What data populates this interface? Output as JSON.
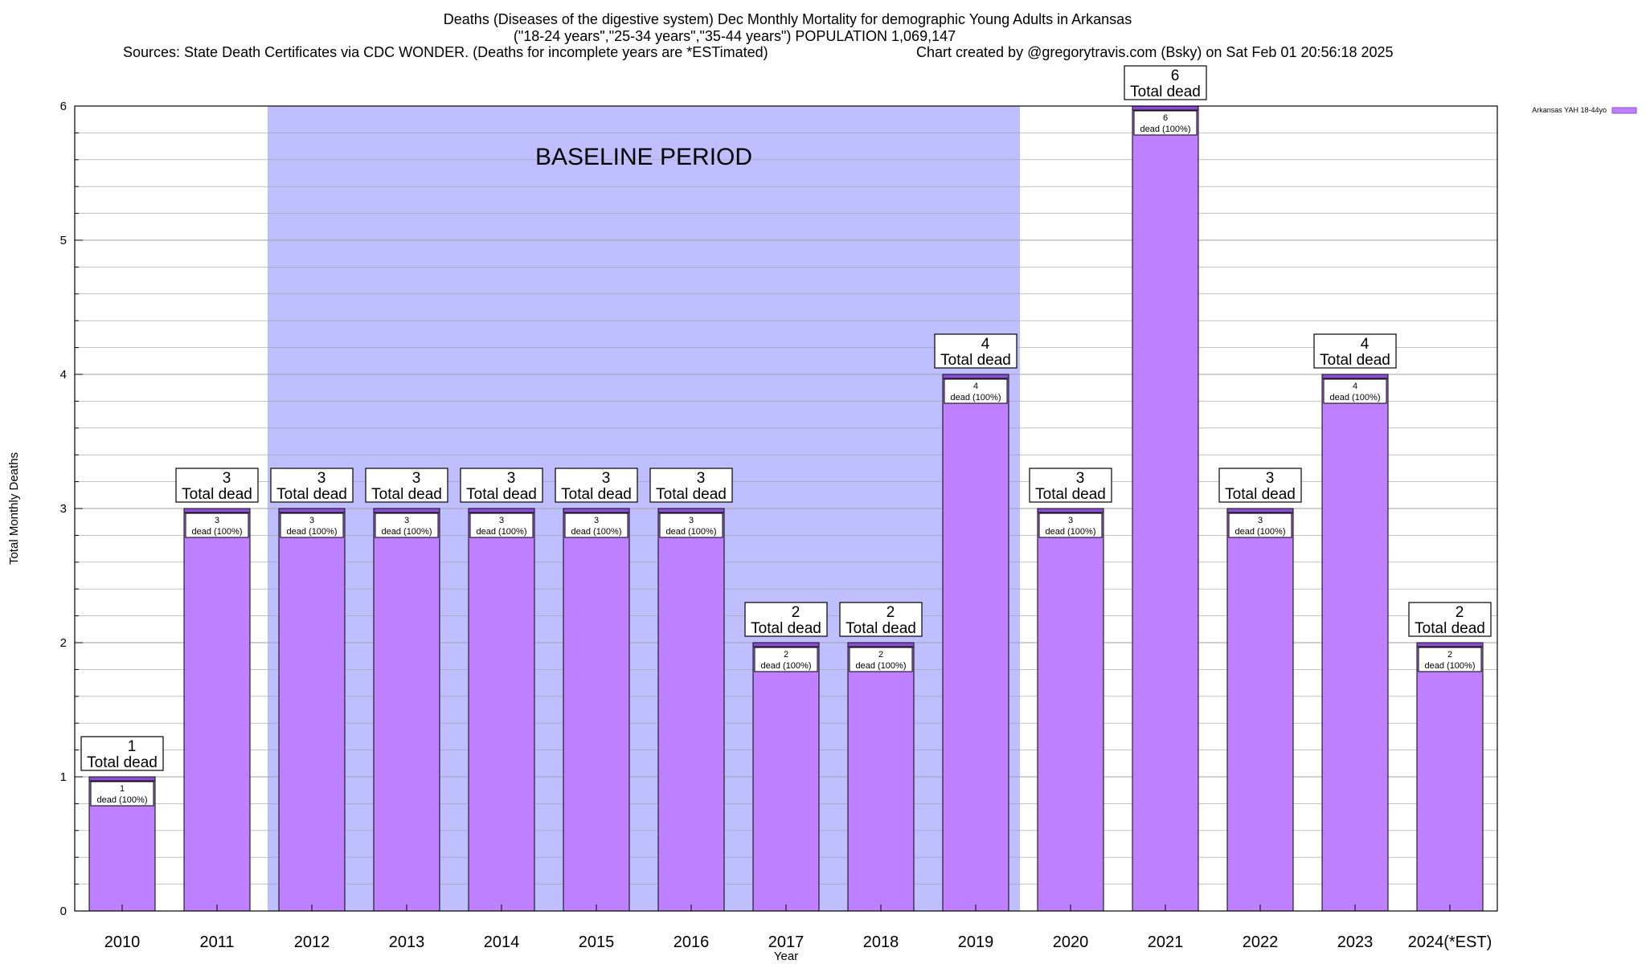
{
  "chart_data": {
    "type": "bar",
    "title": "Deaths (Diseases of the digestive system) Dec Monthly Mortality for demographic Young Adults in Arkansas",
    "subtitle": "(\"18-24 years\",\"25-34 years\",\"35-44 years\") POPULATION 1,069,147",
    "sources": "Sources: State Death Certificates via CDC WONDER. (Deaths for incomplete years are *ESTimated)",
    "credit": "Chart created by @gregorytravis.com (Bsky) on Sat Feb 01 20:56:18 2025",
    "xlabel": "Year",
    "ylabel": "Total Monthly Deaths",
    "ylim": [
      0,
      6
    ],
    "yticks": [
      "0",
      "1",
      "2",
      "3",
      "4",
      "5",
      "6"
    ],
    "grid": true,
    "legend_position": "top-right",
    "series": [
      {
        "name": "Arkansas YAH 18-44yo",
        "values": [
          1,
          3,
          3,
          3,
          3,
          3,
          3,
          2,
          2,
          4,
          3,
          6,
          3,
          4,
          2
        ]
      }
    ],
    "categories": [
      "2010",
      "2011",
      "2012",
      "2013",
      "2014",
      "2015",
      "2016",
      "2017",
      "2018",
      "2019",
      "2020",
      "2021",
      "2022",
      "2023",
      "2024(*EST)"
    ],
    "bar_top_labels": [
      "1",
      "3",
      "3",
      "3",
      "3",
      "3",
      "3",
      "2",
      "2",
      "4",
      "3",
      "6",
      "3",
      "4",
      "2"
    ],
    "bar_top_caption": "Total dead",
    "bar_inner_labels": [
      "1",
      "3",
      "3",
      "3",
      "3",
      "3",
      "3",
      "2",
      "2",
      "4",
      "3",
      "6",
      "3",
      "4",
      "2"
    ],
    "bar_inner_caption": "dead (100%)",
    "baseline_period": {
      "label": "BASELINE PERIOD",
      "from": "2012",
      "to": "2019"
    },
    "colors": {
      "bar": "#bf80ff",
      "baseline": "#bfbfff",
      "cap": "#8a4fd0",
      "grid": "#a0a0a0"
    }
  }
}
